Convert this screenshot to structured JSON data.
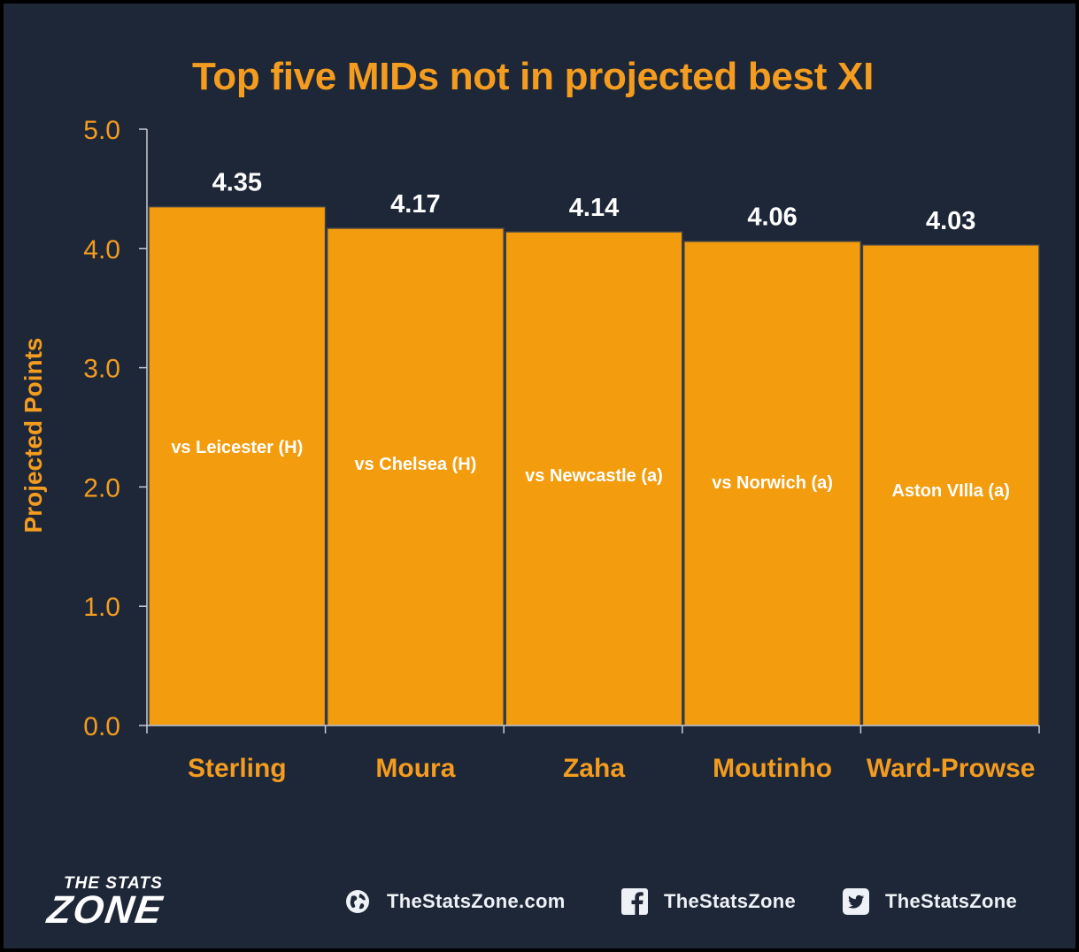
{
  "chart_data": {
    "type": "bar",
    "title": "Top five MIDs not in projected best XI",
    "xlabel": "",
    "ylabel": "Projected Points",
    "categories": [
      "Sterling",
      "Moura",
      "Zaha",
      "Moutinho",
      "Ward-Prowse"
    ],
    "values": [
      4.35,
      4.17,
      4.14,
      4.06,
      4.03
    ],
    "value_labels": [
      "4.35",
      "4.17",
      "4.14",
      "4.06",
      "4.03"
    ],
    "bar_annotations": [
      "vs Leicester (H)",
      "vs Chelsea (H)",
      "vs Newcastle (a)",
      "vs Norwich (a)",
      "Aston VIlla (a)"
    ],
    "yticks": [
      "0.0",
      "1.0",
      "2.0",
      "3.0",
      "4.0",
      "5.0"
    ],
    "ylim": [
      0,
      5
    ],
    "grid": false,
    "colors": {
      "background": "#1e2737",
      "bar": "#f39c0e",
      "bar_edge": "#3a3f48",
      "accent": "#f39c1f",
      "value_label": "#ffffff",
      "axis": "#c8ccd2"
    }
  },
  "footer": {
    "logo_top": "THE STATS",
    "logo_main": "ZONE",
    "website": "TheStatsZone.com",
    "facebook": "TheStatsZone",
    "twitter": "TheStatsZone",
    "website_icon": "globe-icon",
    "facebook_icon": "facebook-icon",
    "twitter_icon": "twitter-icon"
  }
}
